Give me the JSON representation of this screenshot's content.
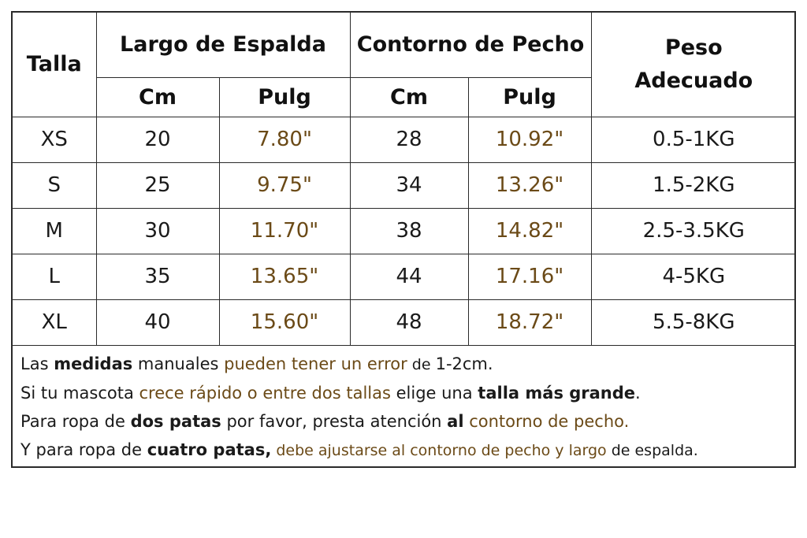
{
  "header": {
    "talla": "Talla",
    "largo": "Largo de Espalda",
    "contorno": "Contorno de Pecho",
    "peso_line1": "Peso",
    "peso_line2": "Adecuado",
    "cm": "Cm",
    "pulg": "Pulg"
  },
  "rows": [
    {
      "talla": "XS",
      "largo_cm": "20",
      "largo_pulg": "7.80\"",
      "pecho_cm": "28",
      "pecho_pulg": "10.92\"",
      "peso": "0.5-1KG"
    },
    {
      "talla": "S",
      "largo_cm": "25",
      "largo_pulg": "9.75\"",
      "pecho_cm": "34",
      "pecho_pulg": "13.26\"",
      "peso": "1.5-2KG"
    },
    {
      "talla": "M",
      "largo_cm": "30",
      "largo_pulg": "11.70\"",
      "pecho_cm": "38",
      "pecho_pulg": "14.82\"",
      "peso": "2.5-3.5KG"
    },
    {
      "talla": "L",
      "largo_cm": "35",
      "largo_pulg": "13.65\"",
      "pecho_cm": "44",
      "pecho_pulg": "17.16\"",
      "peso": "4-5KG"
    },
    {
      "talla": "XL",
      "largo_cm": "40",
      "largo_pulg": "15.60\"",
      "pecho_cm": "48",
      "pecho_pulg": "18.72\"",
      "peso": "5.5-8KG"
    }
  ],
  "notes": {
    "n1": {
      "a": "Las ",
      "b": "medidas",
      "c": " manuales ",
      "d": "pueden tener un error",
      "e": " de ",
      "f": "1-2cm."
    },
    "n2": {
      "a": "Si tu mascota ",
      "b": "crece rápido o entre dos tallas",
      "c": " elige una ",
      "d": "talla más grande",
      "e": "."
    },
    "n3": {
      "a": "Para ropa de ",
      "b": "dos patas",
      "c": " por favor, presta atención ",
      "d": "al",
      "e": " ",
      "f": "contorno de pecho."
    },
    "n4": {
      "a": "Y para ropa de ",
      "b": "cuatro patas,",
      "c": " debe ajustarse al contorno de pecho y largo ",
      "d": "de espalda."
    }
  },
  "colors": {
    "text": "#1a1a1a",
    "accent_brown": "#6b4a17",
    "border": "#2a2a2a"
  }
}
